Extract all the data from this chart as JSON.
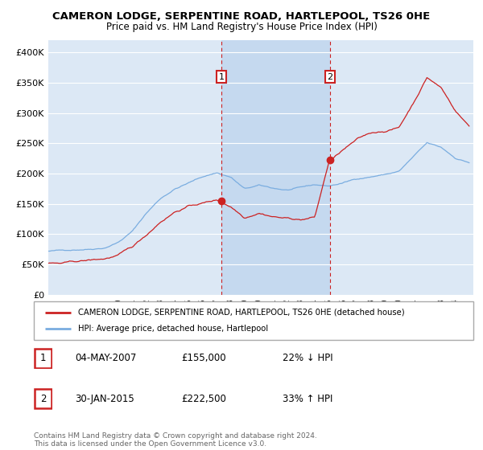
{
  "title": "CAMERON LODGE, SERPENTINE ROAD, HARTLEPOOL, TS26 0HE",
  "subtitle": "Price paid vs. HM Land Registry's House Price Index (HPI)",
  "ylabel_ticks": [
    "£0",
    "£50K",
    "£100K",
    "£150K",
    "£200K",
    "£250K",
    "£300K",
    "£350K",
    "£400K"
  ],
  "ytick_values": [
    0,
    50000,
    100000,
    150000,
    200000,
    250000,
    300000,
    350000,
    400000
  ],
  "ylim": [
    0,
    420000
  ],
  "year_start": 1995,
  "year_end": 2025,
  "hpi_color": "#7aade0",
  "price_color": "#cc2222",
  "sale1_year": 2007.35,
  "sale1_price": 155000,
  "sale2_year": 2015.08,
  "sale2_price": 222500,
  "legend_label1": "CAMERON LODGE, SERPENTINE ROAD, HARTLEPOOL, TS26 0HE (detached house)",
  "legend_label2": "HPI: Average price, detached house, Hartlepool",
  "sale1_date": "04-MAY-2007",
  "sale1_price_str": "£155,000",
  "sale1_pct": "22% ↓ HPI",
  "sale2_date": "30-JAN-2015",
  "sale2_price_str": "£222,500",
  "sale2_pct": "33% ↑ HPI",
  "footnote": "Contains HM Land Registry data © Crown copyright and database right 2024.\nThis data is licensed under the Open Government Licence v3.0.",
  "background_color": "#dce8f5",
  "highlight_color": "#c5d9ef",
  "plot_bg": "#ffffff",
  "marker_edge": "#cc2222",
  "keypoints_hpi": {
    "1995": 72000,
    "1996": 73000,
    "1997": 75000,
    "1998": 77000,
    "1999": 80000,
    "2000": 90000,
    "2001": 108000,
    "2002": 138000,
    "2003": 162000,
    "2004": 178000,
    "2005": 188000,
    "2006": 198000,
    "2007": 205000,
    "2008": 198000,
    "2009": 178000,
    "2010": 183000,
    "2011": 178000,
    "2012": 175000,
    "2013": 178000,
    "2014": 182000,
    "2015": 180000,
    "2016": 185000,
    "2017": 192000,
    "2018": 196000,
    "2019": 200000,
    "2020": 205000,
    "2021": 228000,
    "2022": 250000,
    "2023": 242000,
    "2024": 225000,
    "2025": 218000
  },
  "keypoints_price": {
    "1995": 52000,
    "1996": 51000,
    "1997": 53000,
    "1998": 55000,
    "1999": 57000,
    "2000": 63000,
    "2001": 75000,
    "2002": 95000,
    "2003": 118000,
    "2004": 135000,
    "2005": 145000,
    "2006": 150000,
    "2007": 155000,
    "2008": 145000,
    "2009": 128000,
    "2010": 138000,
    "2011": 133000,
    "2012": 130000,
    "2013": 128000,
    "2014": 132000,
    "2015": 222500,
    "2016": 242000,
    "2017": 258000,
    "2018": 268000,
    "2019": 272000,
    "2020": 278000,
    "2021": 318000,
    "2022": 362000,
    "2023": 345000,
    "2024": 308000,
    "2025": 282000
  }
}
